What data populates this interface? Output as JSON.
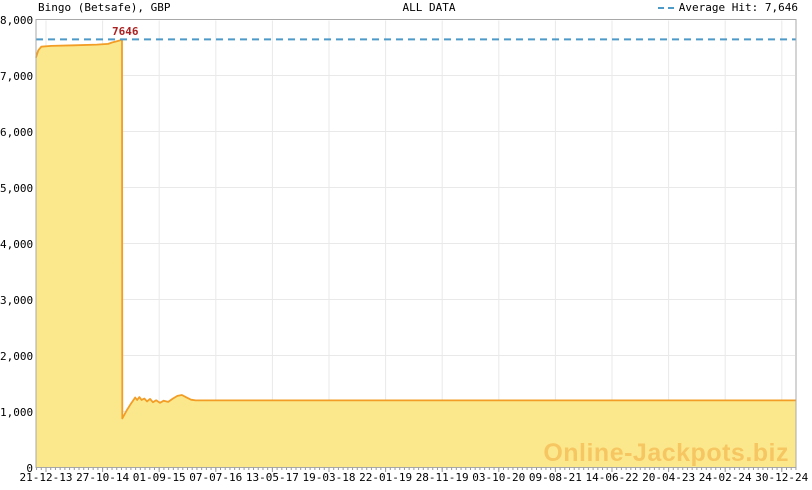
{
  "header": {
    "series_title": "Bingo (Betsafe), GBP",
    "range_title": "ALL DATA",
    "legend_label": "Average Hit: 7,646"
  },
  "annotation": {
    "peak_label": "7646"
  },
  "watermark": "Online-Jackpots.biz",
  "colors": {
    "fill": "#fce88c",
    "line": "#f29d25",
    "average": "#4d9ac9",
    "peak_label": "#aa2222",
    "grid": "#e9e9e9",
    "border": "#a8a8a8",
    "tick": "#999999"
  },
  "chart_data": {
    "type": "area",
    "series_name": "Bingo (Betsafe), GBP",
    "currency": "GBP",
    "title": "ALL DATA",
    "legend_entry": "Average Hit: 7,646",
    "legend_position": "top-right",
    "grid": true,
    "average_hit": 7646,
    "peak_value": 7646,
    "ylim": [
      0,
      8000
    ],
    "xlabel": "",
    "ylabel": "",
    "y_ticks": [
      {
        "v": 0,
        "label": "0"
      },
      {
        "v": 1000,
        "label": "1,000"
      },
      {
        "v": 2000,
        "label": "2,000"
      },
      {
        "v": 3000,
        "label": "3,000"
      },
      {
        "v": 4000,
        "label": "4,000"
      },
      {
        "v": 5000,
        "label": "5,000"
      },
      {
        "v": 6000,
        "label": "6,000"
      },
      {
        "v": 7000,
        "label": "7,000"
      },
      {
        "v": 8000,
        "label": "8,000"
      }
    ],
    "x_ticks": [
      {
        "fx": 0.01316,
        "label": "21-12-13"
      },
      {
        "fx": 0.08763,
        "label": "27-10-14"
      },
      {
        "fx": 0.16211,
        "label": "01-09-15"
      },
      {
        "fx": 0.23658,
        "label": "07-07-16"
      },
      {
        "fx": 0.31105,
        "label": "13-05-17"
      },
      {
        "fx": 0.38553,
        "label": "19-03-18"
      },
      {
        "fx": 0.46,
        "label": "22-01-19"
      },
      {
        "fx": 0.53447,
        "label": "28-11-19"
      },
      {
        "fx": 0.60895,
        "label": "03-10-20"
      },
      {
        "fx": 0.68342,
        "label": "09-08-21"
      },
      {
        "fx": 0.75789,
        "label": "14-06-22"
      },
      {
        "fx": 0.83237,
        "label": "20-04-23"
      },
      {
        "fx": 0.90684,
        "label": "24-02-24"
      },
      {
        "fx": 0.98132,
        "label": "30-12-24"
      }
    ],
    "x_minor_per_major": 12,
    "points": [
      [
        0.0,
        7320
      ],
      [
        0.003,
        7450
      ],
      [
        0.007,
        7515
      ],
      [
        0.02,
        7528
      ],
      [
        0.05,
        7540
      ],
      [
        0.08,
        7552
      ],
      [
        0.095,
        7565
      ],
      [
        0.1,
        7590
      ],
      [
        0.1065,
        7612
      ],
      [
        0.11,
        7625
      ],
      [
        0.1125,
        7646
      ],
      [
        0.1132,
        7646
      ],
      [
        0.1136,
        875
      ],
      [
        0.119,
        1010
      ],
      [
        0.124,
        1120
      ],
      [
        0.1305,
        1250
      ],
      [
        0.133,
        1205
      ],
      [
        0.136,
        1258
      ],
      [
        0.139,
        1205
      ],
      [
        0.1425,
        1232
      ],
      [
        0.146,
        1180
      ],
      [
        0.15,
        1225
      ],
      [
        0.154,
        1165
      ],
      [
        0.158,
        1200
      ],
      [
        0.163,
        1155
      ],
      [
        0.168,
        1192
      ],
      [
        0.174,
        1172
      ],
      [
        0.18,
        1230
      ],
      [
        0.186,
        1278
      ],
      [
        0.192,
        1295
      ],
      [
        0.198,
        1252
      ],
      [
        0.204,
        1210
      ],
      [
        0.21,
        1198
      ],
      [
        1.0,
        1198
      ]
    ]
  }
}
